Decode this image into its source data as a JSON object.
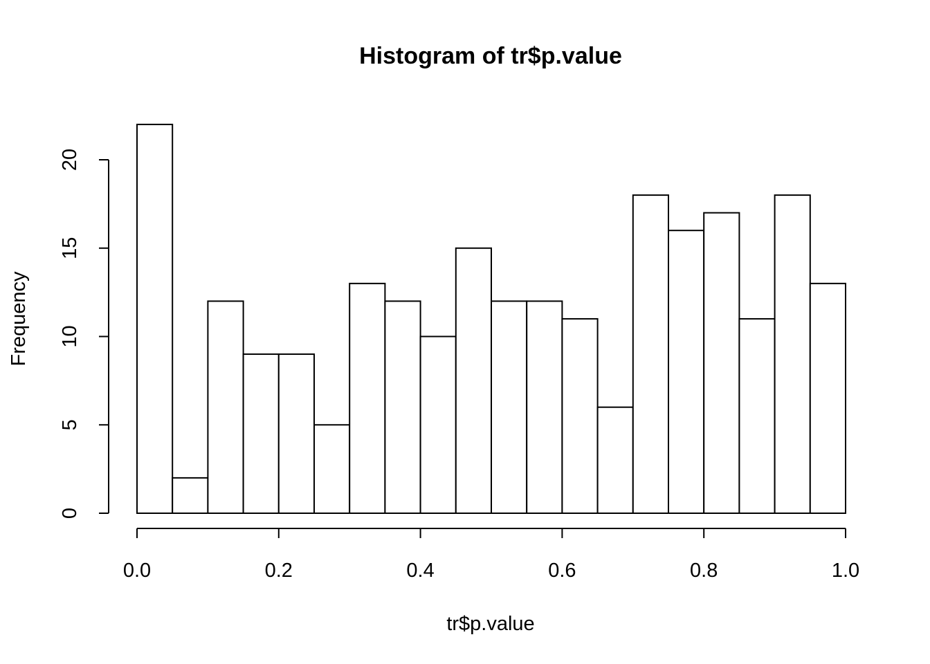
{
  "chart_data": {
    "type": "bar",
    "title": "Histogram of tr$p.value",
    "xlabel": "tr$p.value",
    "ylabel": "Frequency",
    "bin_edges": [
      0.0,
      0.05,
      0.1,
      0.15,
      0.2,
      0.25,
      0.3,
      0.35,
      0.4,
      0.45,
      0.5,
      0.55,
      0.6,
      0.65,
      0.7,
      0.75,
      0.8,
      0.85,
      0.9,
      0.95,
      1.0
    ],
    "values": [
      22,
      2,
      12,
      9,
      9,
      5,
      13,
      12,
      10,
      15,
      12,
      12,
      11,
      6,
      18,
      16,
      17,
      11,
      18,
      13
    ],
    "x_ticks": [
      0.0,
      0.2,
      0.4,
      0.6,
      0.8,
      1.0
    ],
    "x_tick_labels": [
      "0.0",
      "0.2",
      "0.4",
      "0.6",
      "0.8",
      "1.0"
    ],
    "y_ticks": [
      0,
      5,
      10,
      15,
      20
    ],
    "y_tick_labels": [
      "0",
      "5",
      "10",
      "15",
      "20"
    ],
    "xlim": [
      0.0,
      1.0
    ],
    "ylim": [
      0,
      22
    ],
    "grid": false,
    "colors": {
      "bar_fill": "#ffffff",
      "bar_stroke": "#000000"
    }
  }
}
